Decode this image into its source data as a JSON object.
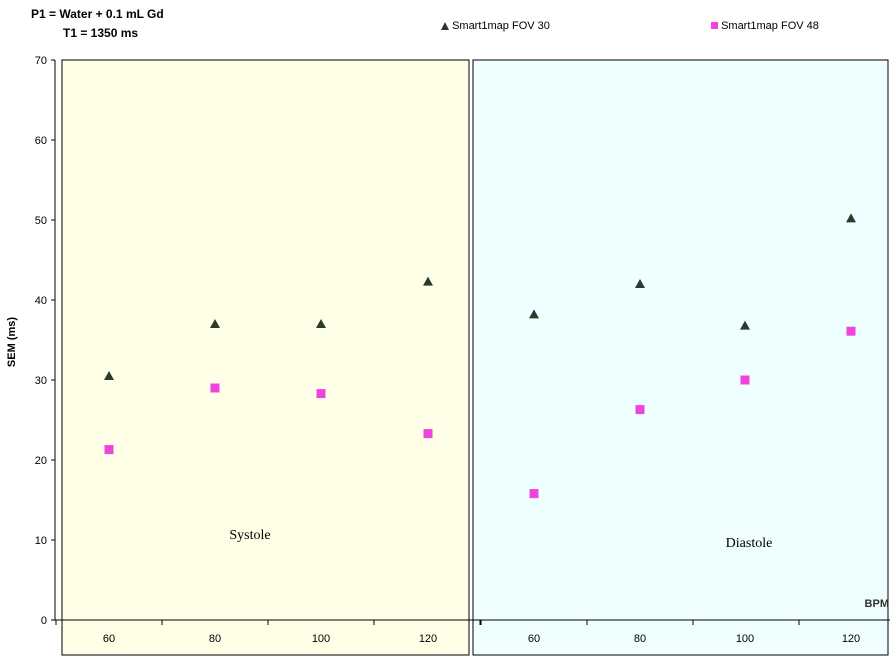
{
  "header": {
    "line1": "P1 = Water + 0.1 mL Gd",
    "line2": "T1 = 1350 ms"
  },
  "chart_data": {
    "type": "scatter",
    "title": "",
    "ylabel": "SEM (ms)",
    "xlabel": "BPM",
    "ylim": [
      0,
      70
    ],
    "yticks": [
      0,
      10,
      20,
      30,
      40,
      50,
      60,
      70
    ],
    "colors": {
      "systole_bg": "#ffffe8",
      "diastole_bg": "#effefe",
      "triangle": "#2b3a2b",
      "square": "#ee44dd"
    },
    "panels": [
      {
        "label": "Systole",
        "categories": [
          "60",
          "80",
          "100",
          "120"
        ],
        "series": [
          {
            "name": "Smart1map FOV 30",
            "marker": "triangle",
            "values": [
              30.5,
              37.0,
              37.0,
              42.3
            ]
          },
          {
            "name": "Smart1map FOV 48",
            "marker": "square",
            "values": [
              21.3,
              29.0,
              28.3,
              23.3
            ]
          }
        ]
      },
      {
        "label": "Diastole",
        "categories": [
          "60",
          "80",
          "100",
          "120"
        ],
        "series": [
          {
            "name": "Smart1map FOV 30",
            "marker": "triangle",
            "values": [
              38.2,
              42.0,
              36.8,
              50.2
            ]
          },
          {
            "name": "Smart1map FOV 48",
            "marker": "square",
            "values": [
              15.8,
              26.3,
              30.0,
              36.1
            ]
          }
        ]
      }
    ],
    "legend": [
      {
        "name": "Smart1map FOV 30",
        "marker": "triangle"
      },
      {
        "name": "Smart1map FOV 48",
        "marker": "square"
      }
    ]
  }
}
